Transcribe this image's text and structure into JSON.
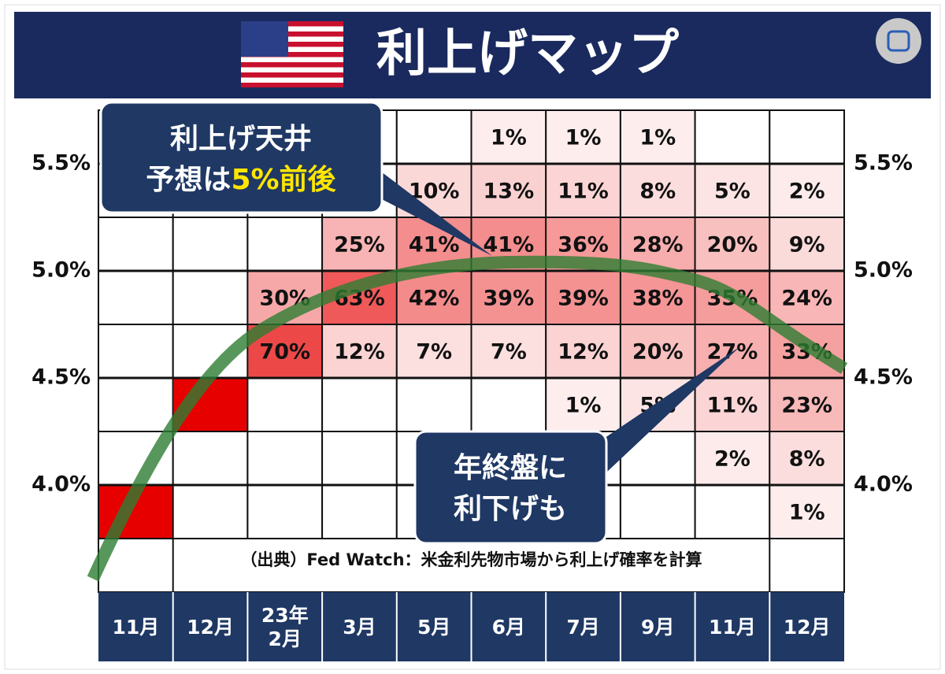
{
  "chart_data": {
    "type": "heatmap",
    "title": "利上げマップ",
    "categories": [
      "11月",
      "12月",
      "23年\n2月",
      "3月",
      "5月",
      "6月",
      "7月",
      "9月",
      "11月",
      "12月"
    ],
    "values": [
      [
        null,
        null,
        null,
        null,
        null,
        1,
        1,
        1,
        null,
        null
      ],
      [
        null,
        null,
        null,
        null,
        10,
        13,
        11,
        8,
        5,
        2
      ],
      [
        null,
        null,
        null,
        25,
        41,
        41,
        36,
        28,
        20,
        9
      ],
      [
        null,
        null,
        30,
        63,
        42,
        39,
        39,
        38,
        35,
        24
      ],
      [
        null,
        null,
        70,
        12,
        7,
        7,
        12,
        20,
        27,
        33
      ],
      [
        null,
        100,
        null,
        null,
        null,
        null,
        1,
        5,
        11,
        23
      ],
      [
        null,
        null,
        null,
        null,
        null,
        null,
        null,
        null,
        2,
        8
      ],
      [
        100,
        null,
        null,
        null,
        null,
        null,
        null,
        null,
        null,
        1
      ]
    ],
    "value_labels": [
      [
        null,
        null,
        null,
        null,
        null,
        "1%",
        "1%",
        "1%",
        null,
        null
      ],
      [
        null,
        null,
        null,
        null,
        "10%",
        "13%",
        "11%",
        "8%",
        "5%",
        "2%"
      ],
      [
        null,
        null,
        null,
        "25%",
        "41%",
        "41%",
        "36%",
        "28%",
        "20%",
        "9%"
      ],
      [
        null,
        null,
        "30%",
        "63%",
        "42%",
        "39%",
        "39%",
        "38%",
        "35%",
        "24%"
      ],
      [
        null,
        null,
        "70%",
        "12%",
        "7%",
        "7%",
        "12%",
        "20%",
        "27%",
        "33%"
      ],
      [
        null,
        null,
        null,
        null,
        null,
        null,
        "1%",
        "5%",
        "11%",
        "23%"
      ],
      [
        null,
        null,
        null,
        null,
        null,
        null,
        null,
        null,
        "2%",
        "8%"
      ],
      [
        null,
        null,
        null,
        null,
        null,
        null,
        null,
        null,
        null,
        "1%"
      ]
    ],
    "color": "#e60000",
    "ylim": [
      3.5,
      5.75
    ],
    "yticks": [
      {
        "value": 5.5,
        "label": "5.5%"
      },
      {
        "value": 5.0,
        "label": "5.0%"
      },
      {
        "value": 4.5,
        "label": "4.5%"
      },
      {
        "value": 4.0,
        "label": "4.0%"
      }
    ],
    "annotations": {
      "ceiling": [
        "利上げ天井",
        "予想は",
        "5%前後"
      ],
      "cut": [
        "年終盤に",
        "利下げも"
      ],
      "source": "（出典）Fed Watch：米金利先物市場から利上げ確率を計算"
    }
  }
}
